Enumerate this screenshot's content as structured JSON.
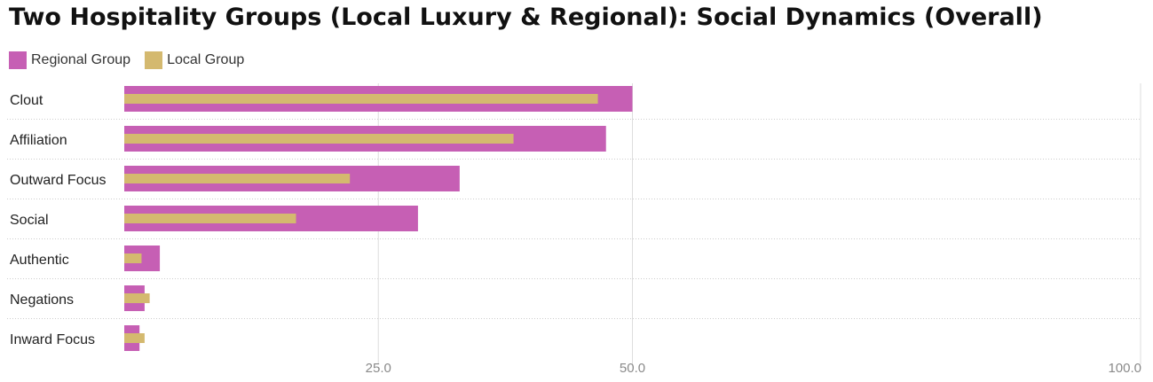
{
  "chart_data": {
    "type": "bar",
    "orientation": "horizontal",
    "title": "Two Hospitality Groups (Local Luxury & Regional): Social Dynamics (Overall)",
    "categories": [
      "Clout",
      "Affiliation",
      "Outward Focus",
      "Social",
      "Authentic",
      "Negations",
      "Inward Focus"
    ],
    "series": [
      {
        "name": "Regional Group",
        "color": "#c65fb4",
        "values": [
          50.0,
          47.4,
          33.0,
          28.9,
          3.5,
          2.0,
          1.5
        ]
      },
      {
        "name": "Local Group",
        "color": "#d4b96f",
        "values": [
          46.6,
          38.3,
          22.2,
          16.9,
          1.7,
          2.5,
          2.0
        ]
      }
    ],
    "xlim": [
      0,
      100
    ],
    "xticks": [
      25.0,
      50.0,
      100.0
    ],
    "tick_labels": [
      "25.0",
      "50.0",
      "100.0"
    ],
    "grid": true,
    "legend_position": "top-left"
  }
}
